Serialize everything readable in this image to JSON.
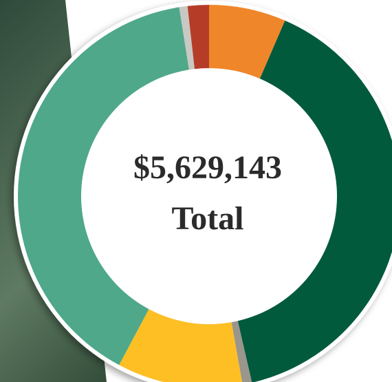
{
  "chart_data": {
    "type": "donut",
    "center_text": "$5,629,143",
    "center_subtext": "Total",
    "values": [
      6.5,
      39.9,
      0.8,
      10.6,
      39.7,
      0.7,
      1.8
    ],
    "colors": [
      "#f0862a",
      "#025a3c",
      "#9a968c",
      "#fdbf24",
      "#4ea889",
      "#c9c8c3",
      "#b53d27"
    ]
  }
}
